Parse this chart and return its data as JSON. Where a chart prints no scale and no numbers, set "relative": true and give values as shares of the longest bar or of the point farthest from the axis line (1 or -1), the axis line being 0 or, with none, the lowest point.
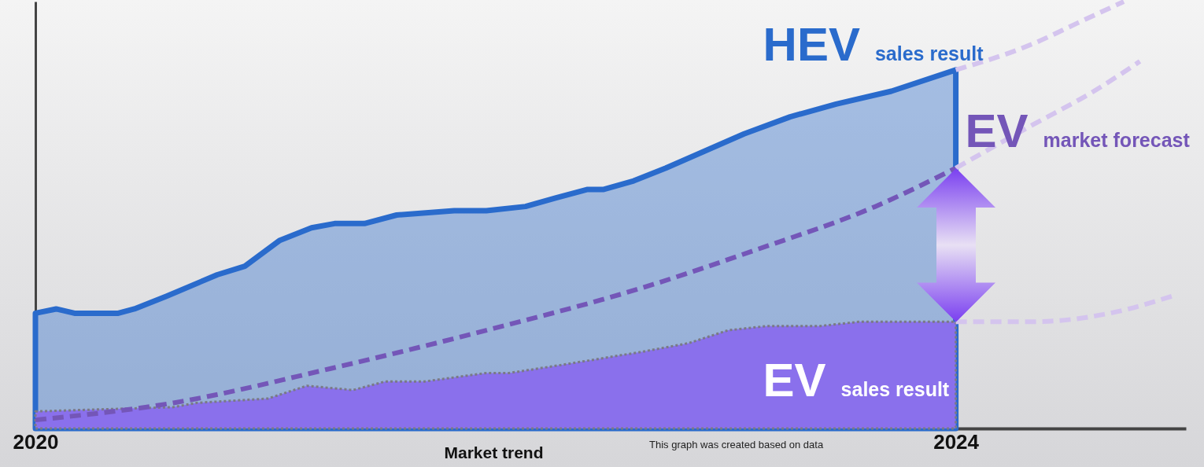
{
  "chart_data": {
    "type": "area",
    "relative": true,
    "xlabel": "Market trend",
    "xlim": [
      2020,
      2025
    ],
    "xticks": [
      2020,
      2024
    ],
    "tick_labels": "x",
    "grid": false,
    "annotations": [
      "This graph was created based on data"
    ],
    "series": [
      {
        "name": "HEV sales result",
        "color": "#2a6bcc",
        "line_style": "solid",
        "x": [
          2020.0,
          2020.09,
          2020.17,
          2020.36,
          2020.43,
          2020.57,
          2020.79,
          2020.91,
          2021.06,
          2021.2,
          2021.3,
          2021.43,
          2021.57,
          2021.82,
          2021.96,
          2022.13,
          2022.26,
          2022.4,
          2022.47,
          2022.6,
          2022.74,
          2022.91,
          2023.08,
          2023.28,
          2023.48,
          2023.72,
          2024.0
        ],
        "values": [
          0.27,
          0.28,
          0.27,
          0.27,
          0.28,
          0.31,
          0.36,
          0.38,
          0.44,
          0.47,
          0.48,
          0.48,
          0.5,
          0.51,
          0.51,
          0.52,
          0.54,
          0.56,
          0.56,
          0.58,
          0.61,
          0.65,
          0.69,
          0.73,
          0.76,
          0.79,
          0.84
        ]
      },
      {
        "name": "EV sales result",
        "color": "#8a70ec",
        "line_style": "dotted",
        "x": [
          2020.0,
          2020.6,
          2020.7,
          2021.01,
          2021.18,
          2021.38,
          2021.52,
          2021.69,
          2021.96,
          2022.06,
          2022.3,
          2022.64,
          2022.84,
          2023.01,
          2023.18,
          2023.41,
          2023.58,
          2024.0
        ],
        "values": [
          0.04,
          0.05,
          0.06,
          0.07,
          0.1,
          0.09,
          0.11,
          0.11,
          0.13,
          0.13,
          0.15,
          0.18,
          0.2,
          0.23,
          0.24,
          0.24,
          0.25,
          0.25
        ]
      },
      {
        "name": "EV market forecast",
        "type": "line",
        "color": "#7456b8",
        "line_style": "dashed",
        "x": [
          2020.0,
          2020.6,
          2021.28,
          2021.96,
          2022.64,
          2023.14,
          2023.65,
          2024.0
        ],
        "values": [
          0.02,
          0.06,
          0.14,
          0.23,
          0.33,
          0.42,
          0.52,
          0.61
        ]
      },
      {
        "type": "line",
        "color": "#d4c4ee",
        "line_style": "dashed",
        "x": [
          2024.0,
          2024.33,
          2024.53,
          2024.73
        ],
        "values": [
          0.84,
          0.9,
          0.95,
          1.0
        ]
      },
      {
        "type": "line",
        "color": "#d4c4ee",
        "line_style": "dashed",
        "x": [
          2024.0,
          2024.33,
          2024.6,
          2024.8
        ],
        "values": [
          0.61,
          0.71,
          0.79,
          0.86
        ]
      },
      {
        "type": "line",
        "color": "#d4c4ee",
        "line_style": "dashed",
        "x": [
          2024.0,
          2024.33,
          2024.67,
          2024.94
        ],
        "values": [
          0.25,
          0.25,
          0.27,
          0.31
        ]
      }
    ]
  }
}
